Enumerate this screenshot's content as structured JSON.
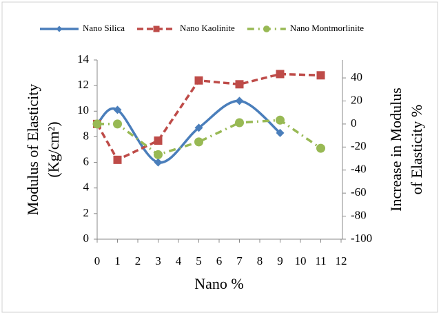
{
  "chart_data": {
    "type": "line",
    "ylabel": [
      "Modulus of Elasticity",
      "(Kg/cm²)"
    ],
    "y2label": [
      "Increase in Modulus",
      "of Elasticity %"
    ],
    "xlabel": "Nano %",
    "xlim": [
      0,
      12
    ],
    "xticks": [
      0,
      1,
      2,
      3,
      4,
      5,
      6,
      7,
      8,
      9,
      10,
      11,
      12
    ],
    "ylim": [
      0,
      14
    ],
    "yticks": [
      0,
      2,
      4,
      6,
      8,
      10,
      12,
      14
    ],
    "y2lim": [
      -100,
      55.6
    ],
    "y2ticks": [
      -100,
      -80,
      -60,
      -40,
      -20,
      0,
      20,
      40
    ],
    "legend": "top",
    "series": [
      {
        "name": "Nano Silica",
        "color": "#4a7ebb",
        "style": "solid",
        "marker": "diamond",
        "smooth": true,
        "x": [
          0,
          1,
          3,
          5,
          7,
          9
        ],
        "values": [
          9,
          10.1,
          6,
          8.7,
          10.8,
          8.3
        ]
      },
      {
        "name": "Nano Kaolinite",
        "color": "#be4b48",
        "style": "dash",
        "marker": "square",
        "smooth": false,
        "x": [
          0,
          1,
          3,
          5,
          7,
          9,
          11
        ],
        "values": [
          9,
          6.2,
          7.7,
          12.4,
          12.1,
          12.9,
          12.8
        ]
      },
      {
        "name": "Nano Montmorlinite",
        "color": "#98b954",
        "style": "dashdot",
        "marker": "circle",
        "smooth": false,
        "x": [
          0,
          1,
          3,
          5,
          7,
          9,
          11
        ],
        "values": [
          9,
          9,
          6.6,
          7.6,
          9.1,
          9.3,
          7.1
        ]
      }
    ]
  }
}
